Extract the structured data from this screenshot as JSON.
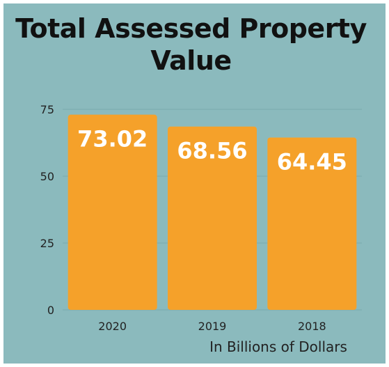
{
  "chart_data": {
    "type": "bar",
    "title_line1": "Total Assessed Property",
    "title_line2": "Value",
    "categories": [
      "2020",
      "2019",
      "2018"
    ],
    "values": [
      73.02,
      68.56,
      64.45
    ],
    "value_labels": [
      "73.02",
      "68.56",
      "64.45"
    ],
    "xlabel": "In Billions of Dollars",
    "ylabel": "",
    "ylim": [
      0,
      75
    ],
    "yticks": [
      0,
      25,
      50,
      75
    ],
    "grid": true,
    "bar_color": "#f5a12a",
    "background_color": "#8bbabd"
  }
}
